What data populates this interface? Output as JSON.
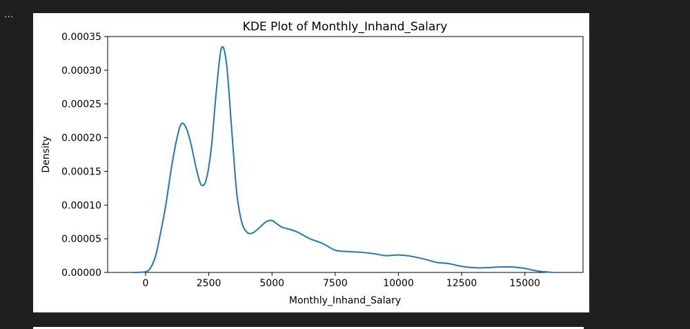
{
  "toolbar": {
    "more_label": "..."
  },
  "chart_data": {
    "type": "line",
    "title": "KDE Plot of Monthly_Inhand_Salary",
    "xlabel": "Monthly_Inhand_Salary",
    "ylabel": "Density",
    "xlim": [
      -1500,
      17300
    ],
    "ylim": [
      0,
      0.00035
    ],
    "xticks": [
      0,
      2500,
      5000,
      7500,
      10000,
      12500,
      15000
    ],
    "xtick_labels": [
      "0",
      "2500",
      "5000",
      "7500",
      "10000",
      "12500",
      "15000"
    ],
    "yticks": [
      0,
      5e-05,
      0.0001,
      0.00015,
      0.0002,
      0.00025,
      0.0003,
      0.00035
    ],
    "ytick_labels": [
      "0.00000",
      "0.00005",
      "0.00010",
      "0.00015",
      "0.00020",
      "0.00025",
      "0.00030",
      "0.00035"
    ],
    "grid": false,
    "line_color": "#1f77b4",
    "series": [
      {
        "x": [
          -500,
          0,
          200,
          400,
          600,
          800,
          1000,
          1200,
          1400,
          1600,
          1800,
          2000,
          2200,
          2400,
          2600,
          2800,
          3000,
          3200,
          3400,
          3600,
          3800,
          4000,
          4200,
          4400,
          4600,
          4800,
          5000,
          5200,
          5400,
          5600,
          6000,
          6500,
          7000,
          7500,
          8000,
          8500,
          9000,
          9500,
          10000,
          10500,
          11000,
          11500,
          12000,
          12500,
          13000,
          13500,
          14000,
          14500,
          15000,
          15500,
          16100
        ],
        "y": [
          0,
          1e-06,
          7e-06,
          2.5e-05,
          6e-05,
          0.0001,
          0.00015,
          0.000192,
          0.00022,
          0.000215,
          0.00019,
          0.000155,
          0.00013,
          0.000138,
          0.000185,
          0.00027,
          0.000333,
          0.00031,
          0.000215,
          0.00012,
          7.5e-05,
          6e-05,
          5.8e-05,
          6.3e-05,
          7e-05,
          7.6e-05,
          7.7e-05,
          7.2e-05,
          6.7e-05,
          6.5e-05,
          6e-05,
          5e-05,
          4.3e-05,
          3.3e-05,
          3.1e-05,
          3e-05,
          2.8e-05,
          2.5e-05,
          2.6e-05,
          2.4e-05,
          2e-05,
          1.5e-05,
          1.3e-05,
          9e-06,
          7e-06,
          7e-06,
          8e-06,
          8e-06,
          6e-06,
          2e-06,
          0
        ]
      }
    ]
  }
}
